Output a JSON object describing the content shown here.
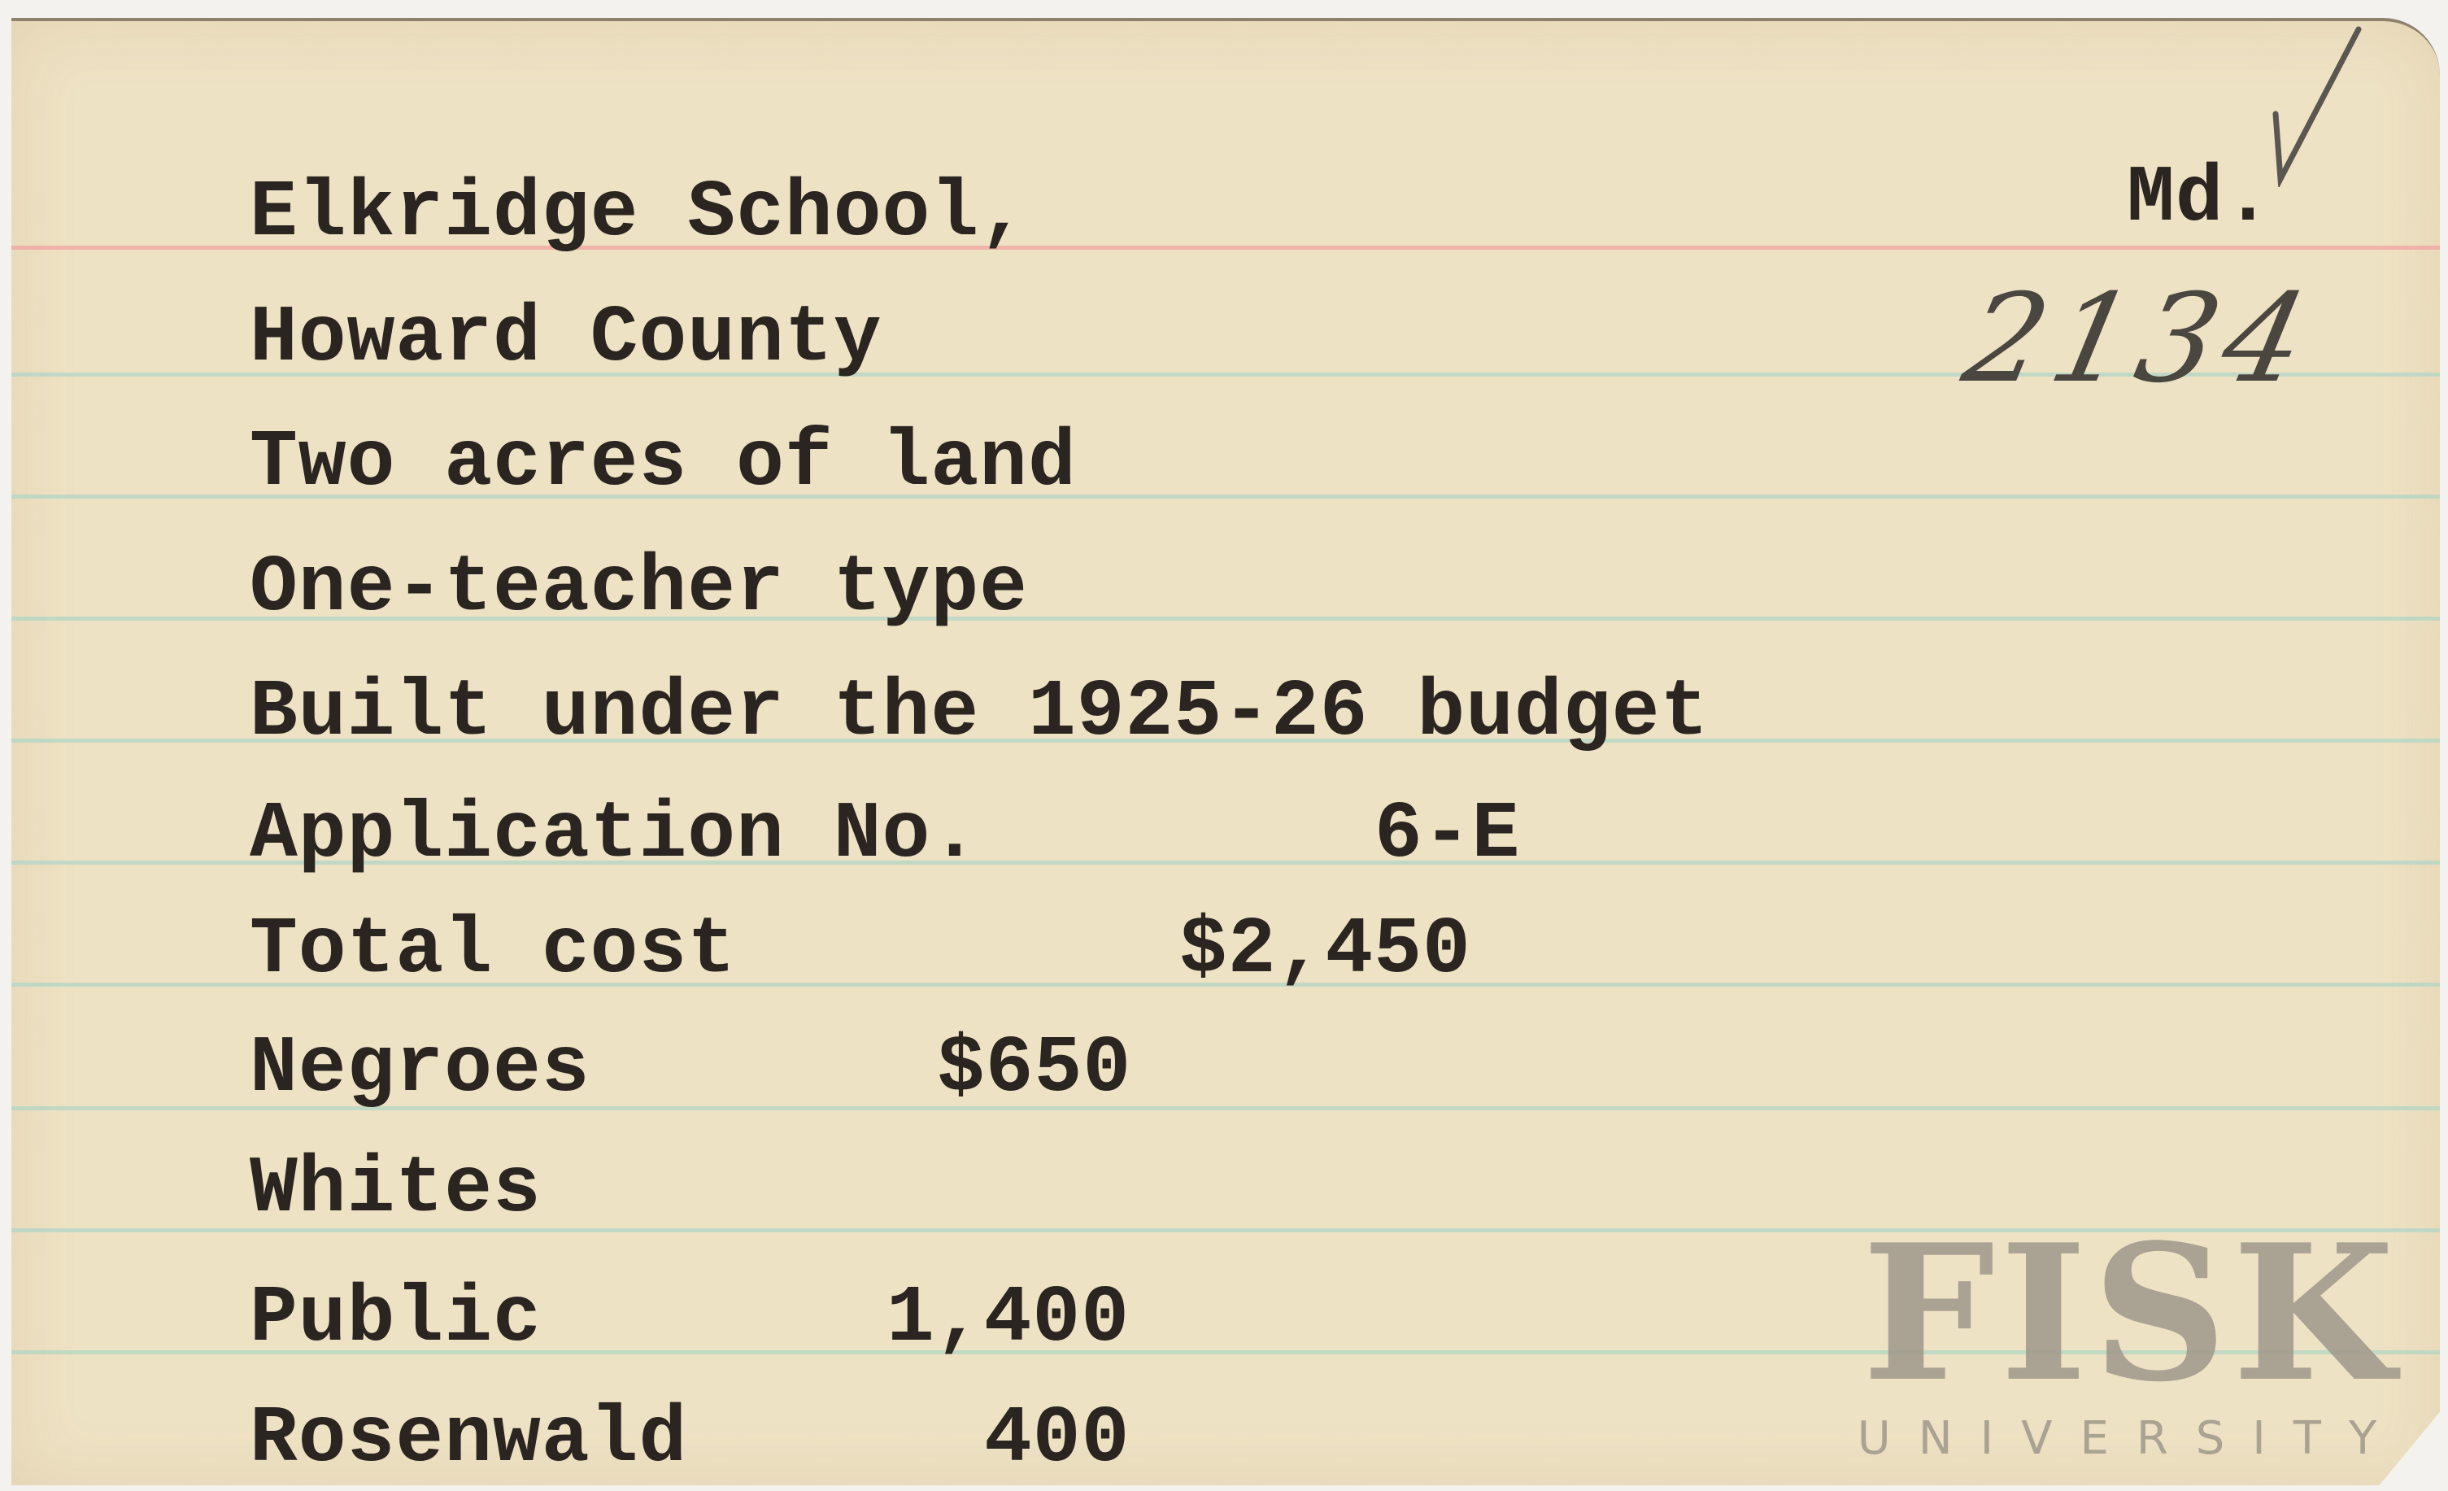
{
  "card": {
    "state": "Md.",
    "handwritten_number": "2134",
    "lines": [
      {
        "label": "Elkridge School,"
      },
      {
        "label": "Howard County"
      },
      {
        "label": "Two acres of land"
      },
      {
        "label": "One-teacher type"
      },
      {
        "label": "Built under the 1925-26 budget"
      },
      {
        "label": "Application No.",
        "value": "6-E"
      },
      {
        "label": "Total cost",
        "value": "$2,450"
      },
      {
        "label": "Negroes",
        "value": "$650"
      },
      {
        "label": "Whites",
        "value": ""
      },
      {
        "label": "Public",
        "value": "1,400"
      },
      {
        "label": "Rosenwald",
        "value": "400"
      }
    ]
  },
  "watermark": {
    "name": "FISK",
    "subtitle": "UNIVERSITY"
  },
  "colors": {
    "paper": "#eee2c4",
    "red_rule": "#f0a9a4",
    "blue_rule": "#b9d6c4",
    "ink": "#2a2520"
  }
}
